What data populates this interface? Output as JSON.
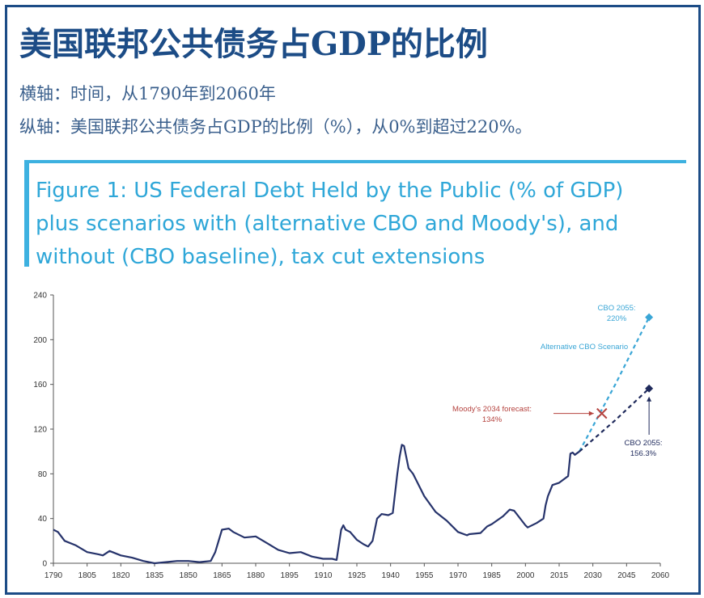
{
  "header": {
    "title": "美国联邦公共债务占GDP的比例",
    "x_note": "横轴：时间，从1790年到2060年",
    "y_note": "纵轴：美国联邦公共债务占GDP的比例（%），从0%到超过220%。"
  },
  "figure": {
    "caption_lines": [
      "Figure 1: US Federal Debt Held by the Public (% of GDP)",
      "plus scenarios with (alternative CBO and Moody's), and",
      "without (CBO baseline), tax cut extensions"
    ]
  },
  "colors": {
    "history": "#26336b",
    "alternative": "#3aa6d6",
    "baseline": "#1f2a5c",
    "moody": "#b5433f",
    "title": "#1c4c86",
    "caption": "#2fa7d8"
  },
  "chart_data": {
    "type": "line",
    "title": "Figure 1: US Federal Debt Held by the Public (% of GDP) plus scenarios with (alternative CBO and Moody's), and without (CBO baseline), tax cut extensions",
    "xlabel": "",
    "ylabel": "",
    "xlim": [
      1790,
      2060
    ],
    "ylim": [
      0,
      240
    ],
    "x_ticks": [
      1790,
      1805,
      1820,
      1835,
      1850,
      1865,
      1880,
      1895,
      1910,
      1925,
      1940,
      1955,
      1970,
      1985,
      2000,
      2015,
      2030,
      2045,
      2060
    ],
    "y_ticks": [
      0,
      40,
      80,
      120,
      160,
      200,
      240
    ],
    "grid": false,
    "series": [
      {
        "style": "solid",
        "x": [
          1790,
          1792,
          1795,
          1800,
          1805,
          1810,
          1812,
          1815,
          1820,
          1825,
          1830,
          1835,
          1840,
          1845,
          1850,
          1855,
          1860,
          1862,
          1865,
          1868,
          1870,
          1875,
          1880,
          1885,
          1890,
          1895,
          1900,
          1905,
          1910,
          1914,
          1916,
          1918,
          1919,
          1920,
          1922,
          1925,
          1928,
          1930,
          1932,
          1934,
          1936,
          1939,
          1941,
          1943,
          1944,
          1945,
          1946,
          1947,
          1948,
          1950,
          1955,
          1960,
          1965,
          1970,
          1974,
          1975,
          1980,
          1983,
          1985,
          1990,
          1993,
          1995,
          2000,
          2001,
          2005,
          2008,
          2009,
          2010,
          2012,
          2015,
          2019,
          2020,
          2021,
          2022,
          2024
        ],
        "y": [
          30,
          28,
          20,
          16,
          10,
          8,
          7,
          11,
          7,
          5,
          2,
          0,
          1,
          2,
          2,
          1,
          2,
          10,
          30,
          31,
          28,
          23,
          24,
          18,
          12,
          9,
          10,
          6,
          4,
          4,
          3,
          30,
          34,
          30,
          28,
          21,
          17,
          15,
          20,
          40,
          44,
          43,
          45,
          80,
          95,
          106,
          105,
          95,
          85,
          80,
          60,
          46,
          38,
          28,
          25,
          26,
          27,
          33,
          35,
          42,
          48,
          47,
          34,
          32,
          36,
          40,
          52,
          60,
          70,
          72,
          78,
          98,
          99,
          97,
          100
        ]
      },
      {
        "name": "Alternative CBO Scenario",
        "style": "dashed",
        "x": [
          2024,
          2040,
          2055
        ],
        "y": [
          100,
          160,
          220
        ]
      },
      {
        "style": "dashed",
        "x": [
          2024,
          2040,
          2055
        ],
        "y": [
          100,
          128,
          156.3
        ]
      }
    ],
    "markers": [
      {
        "label": "Moody's 2034 forecast:",
        "value_label": "134%",
        "x": 2034,
        "y": 134,
        "shape": "x"
      },
      {
        "label": "CBO 2055:",
        "value_label": "220%",
        "x": 2055,
        "y": 220,
        "shape": "diamond"
      },
      {
        "label": "CBO 2055:",
        "value_label": "156.3%",
        "x": 2055,
        "y": 156.3,
        "shape": "diamond"
      }
    ]
  }
}
